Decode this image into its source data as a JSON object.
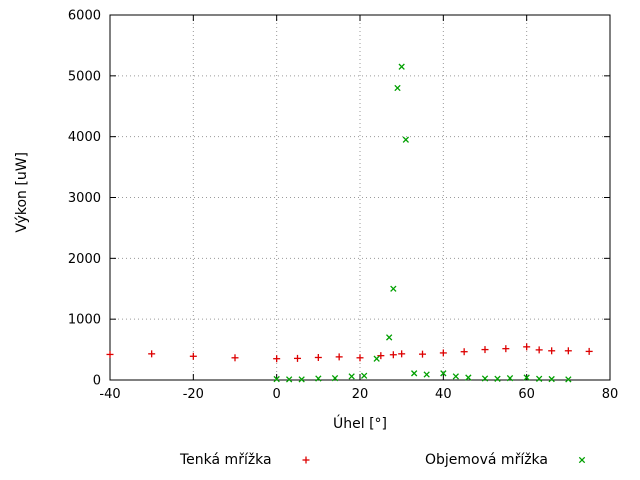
{
  "chart": {
    "background": "#ffffff",
    "frame_color": "#000000",
    "grid_color": "#9a9a9a"
  },
  "chart_data": {
    "type": "scatter",
    "title": "",
    "xlabel": "Úhel [°]",
    "ylabel": "Výkon [uW]",
    "xlim": [
      -40,
      80
    ],
    "ylim": [
      0,
      6000
    ],
    "xticks": [
      -40,
      -20,
      0,
      20,
      40,
      60,
      80
    ],
    "yticks": [
      0,
      1000,
      2000,
      3000,
      4000,
      5000,
      6000
    ],
    "grid": true,
    "legend_position": "bottom",
    "series": [
      {
        "name": "Tenká mřížka",
        "marker": "plus",
        "color": "#dd0000",
        "points": [
          [
            -40,
            420
          ],
          [
            -30,
            430
          ],
          [
            -20,
            390
          ],
          [
            -10,
            365
          ],
          [
            0,
            350
          ],
          [
            5,
            355
          ],
          [
            10,
            370
          ],
          [
            15,
            380
          ],
          [
            20,
            365
          ],
          [
            25,
            400
          ],
          [
            28,
            415
          ],
          [
            30,
            430
          ],
          [
            35,
            425
          ],
          [
            40,
            445
          ],
          [
            45,
            465
          ],
          [
            50,
            500
          ],
          [
            55,
            515
          ],
          [
            60,
            545
          ],
          [
            63,
            495
          ],
          [
            66,
            480
          ],
          [
            70,
            480
          ],
          [
            75,
            470
          ]
        ]
      },
      {
        "name": "Objemová mřížka",
        "marker": "cross",
        "color": "#00a000",
        "points": [
          [
            0,
            15
          ],
          [
            3,
            10
          ],
          [
            6,
            10
          ],
          [
            10,
            25
          ],
          [
            14,
            30
          ],
          [
            18,
            60
          ],
          [
            21,
            70
          ],
          [
            24,
            350
          ],
          [
            27,
            700
          ],
          [
            28,
            1500
          ],
          [
            29,
            4800
          ],
          [
            30,
            5150
          ],
          [
            31,
            3950
          ],
          [
            33,
            110
          ],
          [
            36,
            90
          ],
          [
            40,
            110
          ],
          [
            43,
            60
          ],
          [
            46,
            40
          ],
          [
            50,
            25
          ],
          [
            53,
            20
          ],
          [
            56,
            30
          ],
          [
            60,
            40
          ],
          [
            63,
            20
          ],
          [
            66,
            15
          ],
          [
            70,
            10
          ]
        ]
      }
    ]
  },
  "legend": {
    "items": [
      {
        "label": "Tenká mřížka"
      },
      {
        "label": "Objemová mřížka"
      }
    ]
  }
}
